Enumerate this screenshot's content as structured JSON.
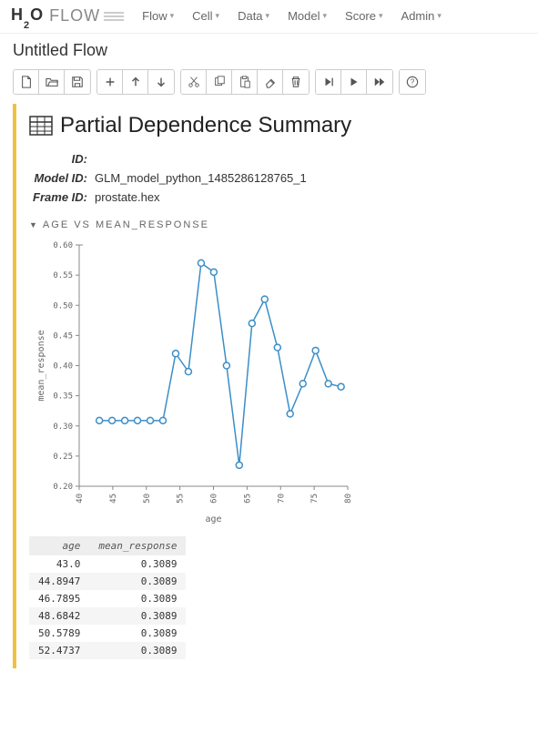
{
  "logo": {
    "brand_bold": "H",
    "brand_sub": "2",
    "brand_end": "O",
    "brand_flow": "FLOW"
  },
  "menus": [
    {
      "label": "Flow"
    },
    {
      "label": "Cell"
    },
    {
      "label": "Data"
    },
    {
      "label": "Model"
    },
    {
      "label": "Score"
    },
    {
      "label": "Admin"
    }
  ],
  "flow_title": "Untitled Flow",
  "summary": {
    "heading": "Partial Dependence Summary",
    "meta": [
      {
        "label": "ID:",
        "value": ""
      },
      {
        "label": "Model ID:",
        "value": "GLM_model_python_1485286128765_1"
      },
      {
        "label": "Frame ID:",
        "value": "prostate.hex"
      }
    ]
  },
  "section_title": "AGE VS MEAN_RESPONSE",
  "chart": {
    "type": "line",
    "xlabel": "age",
    "ylabel": "mean_response",
    "xlim": [
      40,
      80
    ],
    "ylim": [
      0.2,
      0.6
    ],
    "xticks": [
      40,
      45,
      50,
      55,
      60,
      65,
      70,
      75,
      80
    ],
    "yticks": [
      0.2,
      0.25,
      0.3,
      0.35,
      0.4,
      0.45,
      0.5,
      0.55,
      0.6
    ],
    "line_color": "#3b8ec7",
    "marker_fill": "#ffffff",
    "marker_stroke": "#3b8ec7",
    "grid_color": "#cccccc",
    "background_color": "#ffffff",
    "label_fontsize": 10,
    "tick_fontsize": 9,
    "marker_radius": 3.5,
    "line_width": 1.5,
    "points": [
      {
        "x": 43.0,
        "y": 0.3089
      },
      {
        "x": 44.8947,
        "y": 0.3089
      },
      {
        "x": 46.7895,
        "y": 0.3089
      },
      {
        "x": 48.6842,
        "y": 0.3089
      },
      {
        "x": 50.5789,
        "y": 0.3089
      },
      {
        "x": 52.4737,
        "y": 0.3089
      },
      {
        "x": 54.37,
        "y": 0.42
      },
      {
        "x": 56.26,
        "y": 0.39
      },
      {
        "x": 58.16,
        "y": 0.57
      },
      {
        "x": 60.05,
        "y": 0.555
      },
      {
        "x": 61.95,
        "y": 0.4
      },
      {
        "x": 63.84,
        "y": 0.235
      },
      {
        "x": 65.74,
        "y": 0.47
      },
      {
        "x": 67.63,
        "y": 0.51
      },
      {
        "x": 69.53,
        "y": 0.43
      },
      {
        "x": 71.42,
        "y": 0.32
      },
      {
        "x": 73.32,
        "y": 0.37
      },
      {
        "x": 75.21,
        "y": 0.425
      },
      {
        "x": 77.11,
        "y": 0.37
      },
      {
        "x": 79.0,
        "y": 0.365
      }
    ]
  },
  "table": {
    "columns": [
      "age",
      "mean_response"
    ],
    "rows": [
      [
        "43.0",
        "0.3089"
      ],
      [
        "44.8947",
        "0.3089"
      ],
      [
        "46.7895",
        "0.3089"
      ],
      [
        "48.6842",
        "0.3089"
      ],
      [
        "50.5789",
        "0.3089"
      ],
      [
        "52.4737",
        "0.3089"
      ]
    ]
  }
}
